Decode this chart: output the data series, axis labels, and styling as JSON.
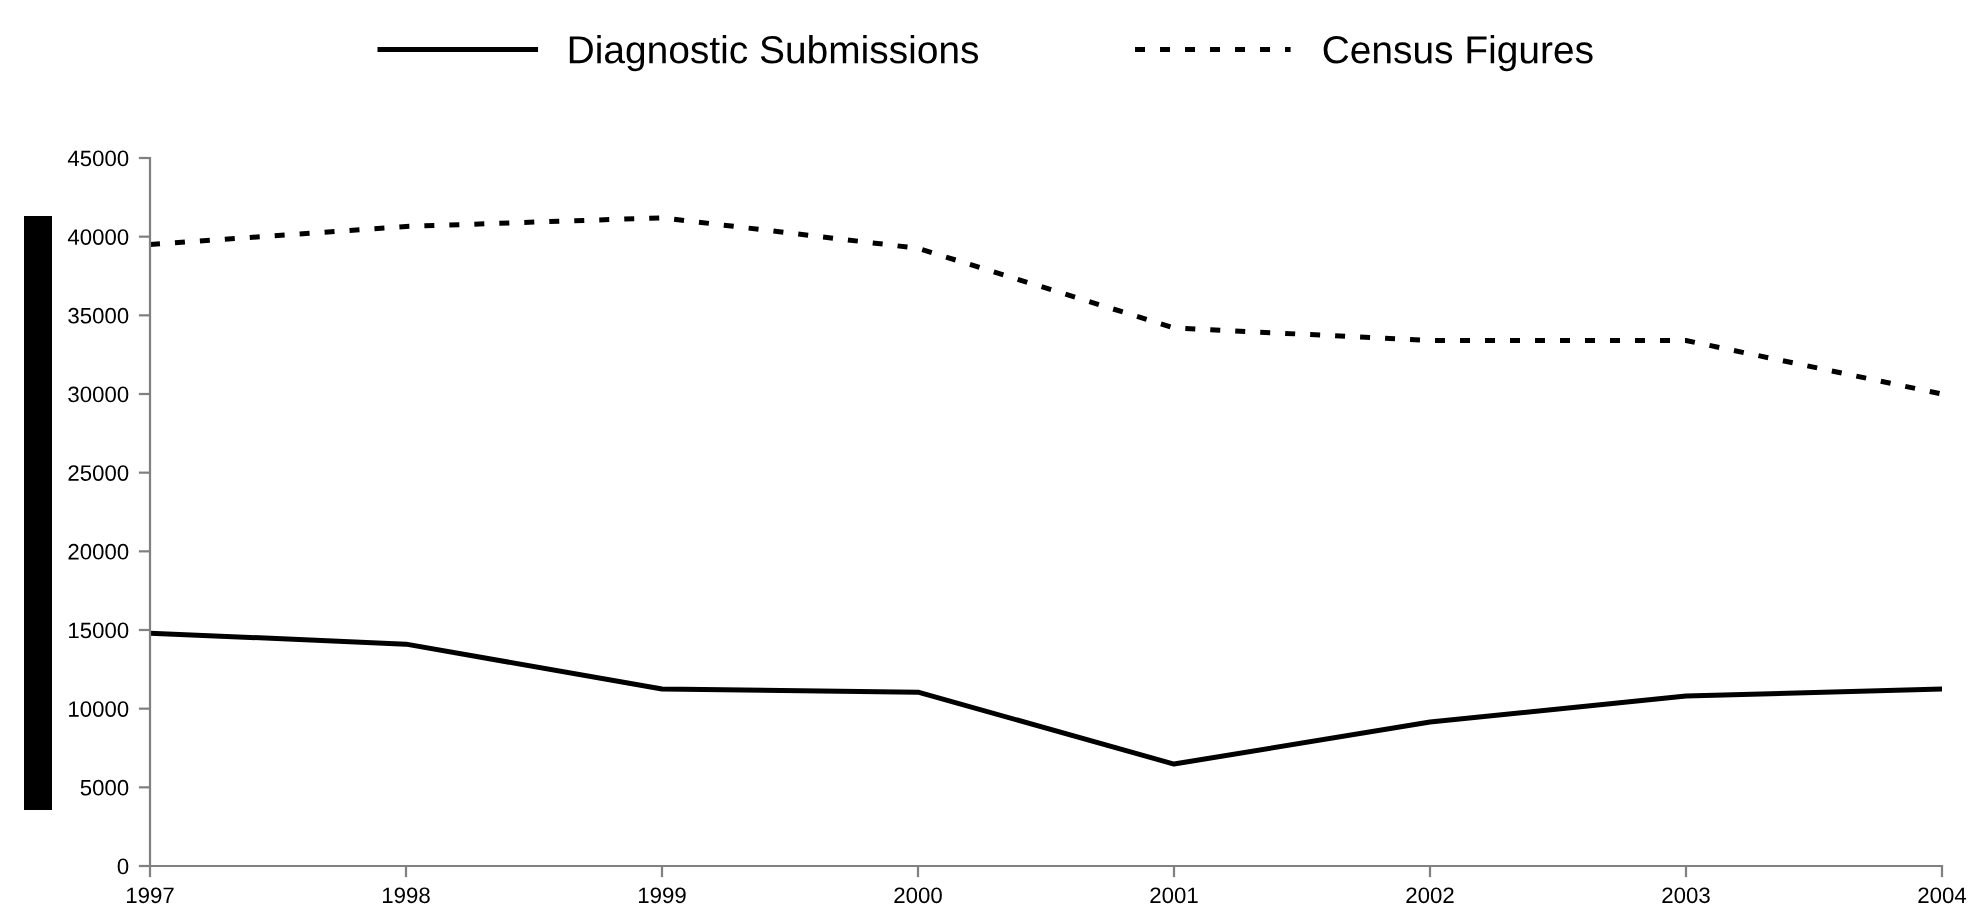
{
  "chart_data": {
    "type": "line",
    "x": [
      1997,
      1998,
      1999,
      2000,
      2001,
      2002,
      2003,
      2004
    ],
    "series": [
      {
        "name": "Diagnostic Submissions",
        "color": "#000000",
        "line_style": "solid",
        "values": [
          14800,
          14100,
          11250,
          11050,
          6480,
          9150,
          10800,
          11250
        ]
      },
      {
        "name": "Census Figures",
        "color": "#000000",
        "line_style": "dotted",
        "values": [
          39500,
          40650,
          41200,
          39260,
          34200,
          33400,
          33400,
          30000
        ]
      }
    ],
    "xlim": [
      1997,
      2004
    ],
    "xticks": [
      1997,
      1998,
      1999,
      2000,
      2001,
      2002,
      2003,
      2004
    ],
    "ylim": [
      0,
      45000
    ],
    "yticks": [
      0,
      5000,
      10000,
      15000,
      20000,
      25000,
      30000,
      35000,
      40000,
      45000
    ],
    "grid": false,
    "legend": "top",
    "marker": "none"
  }
}
